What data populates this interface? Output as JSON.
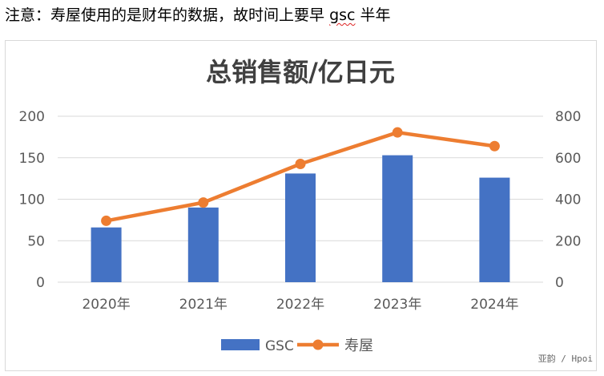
{
  "note": {
    "prefix": "注意：寿屋使用的是财年的数据，故时间上要早",
    "gsc": "gsc",
    "suffix": "半年"
  },
  "watermark": "亚韵 / Hpoi",
  "colors": {
    "bar": "#4472C4",
    "line": "#ED7D31",
    "grid": "#d9d9d9",
    "axis_text": "#595959",
    "title": "#404040"
  },
  "chart_data": {
    "type": "bar",
    "title": "总销售额/亿日元",
    "categories": [
      "2020年",
      "2021年",
      "2022年",
      "2023年",
      "2024年"
    ],
    "series": [
      {
        "name": "GSC",
        "type": "bar",
        "axis": "left",
        "values": [
          66,
          90,
          131,
          153,
          126
        ]
      },
      {
        "name": "寿屋",
        "type": "line",
        "axis": "right",
        "values": [
          296,
          384,
          570,
          722,
          656
        ]
      }
    ],
    "y_left": {
      "lim": [
        0,
        200
      ],
      "ticks": [
        "0",
        "50",
        "100",
        "150",
        "200"
      ]
    },
    "y_right": {
      "lim": [
        0,
        800
      ],
      "ticks": [
        "0",
        "200",
        "400",
        "600",
        "800"
      ]
    },
    "grid": true,
    "legend": "bottom"
  }
}
